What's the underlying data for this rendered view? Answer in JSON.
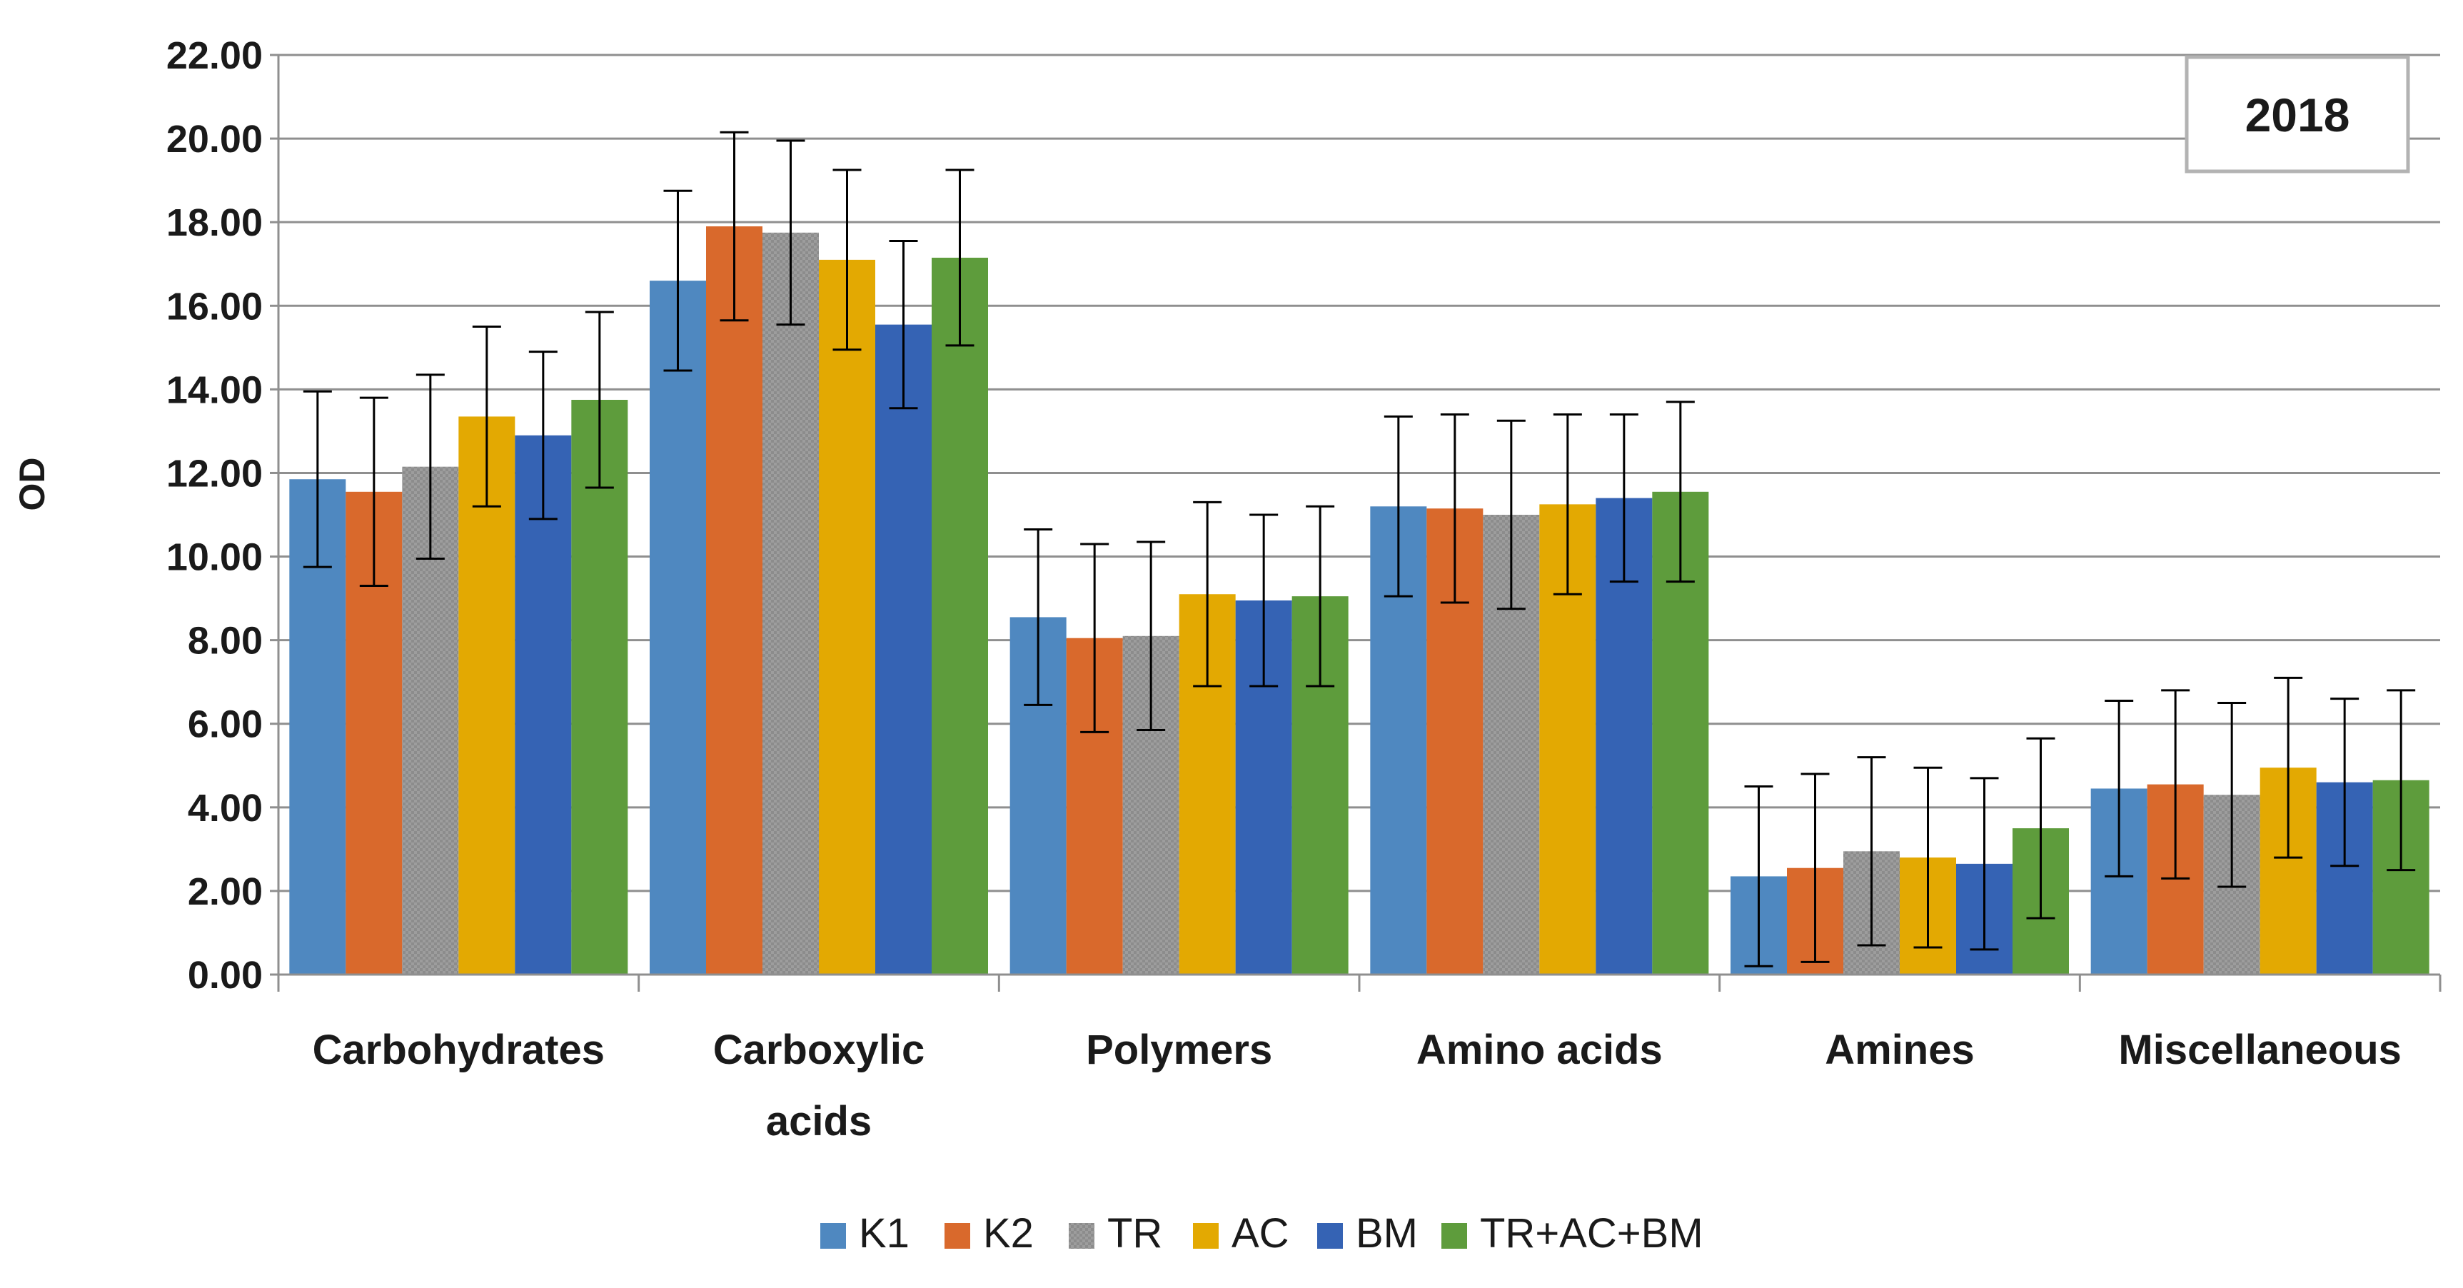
{
  "chart_data": {
    "type": "bar",
    "title": "",
    "annotation": "2018",
    "xlabel": "",
    "ylabel": "OD",
    "ylim": [
      0,
      22
    ],
    "ytick_step": 2,
    "ytick_labels": [
      "0.00",
      "2.00",
      "4.00",
      "6.00",
      "8.00",
      "10.00",
      "12.00",
      "14.00",
      "16.00",
      "18.00",
      "20.00",
      "22.00"
    ],
    "grid": true,
    "legend_position": "bottom",
    "categories": [
      [
        "Carbohydrates"
      ],
      [
        "Carboxylic",
        "acids"
      ],
      [
        "Polymers"
      ],
      [
        "Amino acids"
      ],
      [
        "Amines"
      ],
      [
        "Miscellaneous"
      ]
    ],
    "series": [
      {
        "name": "K1",
        "color": "#4f88c0",
        "pattern": false,
        "values": [
          11.85,
          16.6,
          8.55,
          11.2,
          2.35,
          4.45
        ],
        "errors": [
          2.1,
          2.15,
          2.1,
          2.15,
          2.15,
          2.1
        ]
      },
      {
        "name": "K2",
        "color": "#d9692c",
        "pattern": false,
        "values": [
          11.55,
          17.9,
          8.05,
          11.15,
          2.55,
          4.55
        ],
        "errors": [
          2.25,
          2.25,
          2.25,
          2.25,
          2.25,
          2.25
        ]
      },
      {
        "name": "TR",
        "color": "#9a9a9a",
        "pattern": true,
        "values": [
          12.15,
          17.75,
          8.1,
          11.0,
          2.95,
          4.3
        ],
        "errors": [
          2.2,
          2.2,
          2.25,
          2.25,
          2.25,
          2.2
        ]
      },
      {
        "name": "AC",
        "color": "#e3a902",
        "pattern": false,
        "values": [
          13.35,
          17.1,
          9.1,
          11.25,
          2.8,
          4.95
        ],
        "errors": [
          2.15,
          2.15,
          2.2,
          2.15,
          2.15,
          2.15
        ]
      },
      {
        "name": "BM",
        "color": "#3563b4",
        "pattern": false,
        "values": [
          12.9,
          15.55,
          8.95,
          11.4,
          2.65,
          4.6
        ],
        "errors": [
          2.0,
          2.0,
          2.05,
          2.0,
          2.05,
          2.0
        ]
      },
      {
        "name": "TR+AC+BM",
        "color": "#5e9c3c",
        "pattern": false,
        "values": [
          13.75,
          17.15,
          9.05,
          11.55,
          3.5,
          4.65
        ],
        "errors": [
          2.1,
          2.1,
          2.15,
          2.15,
          2.15,
          2.15
        ]
      }
    ]
  }
}
